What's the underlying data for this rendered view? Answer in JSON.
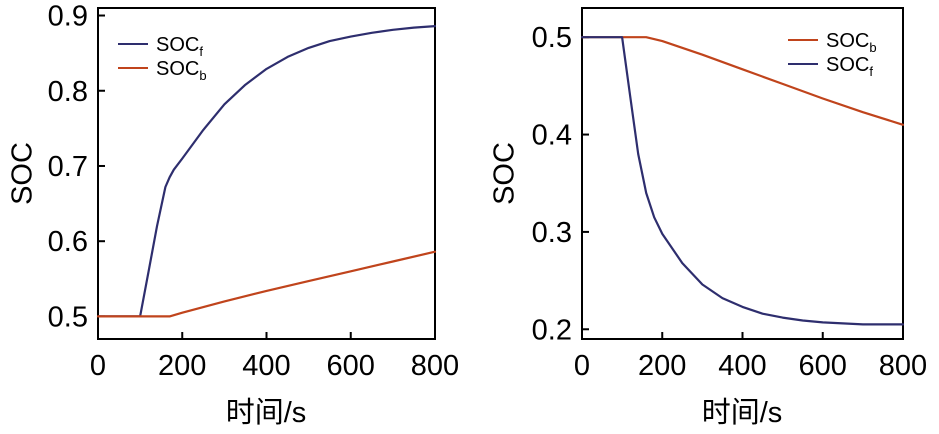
{
  "colors": {
    "SOC_f": "#2e2e6e",
    "SOC_b": "#c0441c",
    "axis": "#000000"
  },
  "chart_data": [
    {
      "type": "line",
      "xlabel": "时间/s",
      "ylabel": "SOC",
      "xlim": [
        0,
        800
      ],
      "ylim": [
        0.47,
        0.91
      ],
      "xticks": [
        0,
        200,
        400,
        600,
        800
      ],
      "xtick_labels": [
        "0",
        "200",
        "400",
        "600",
        "800"
      ],
      "yticks": [
        0.5,
        0.6,
        0.7,
        0.8,
        0.9
      ],
      "ytick_labels": [
        "0.5",
        "0.6",
        "0.7",
        "0.8",
        "0.9"
      ],
      "legend_position": "top-left",
      "legend": [
        {
          "base": "SOC",
          "sub": "f",
          "series": "SOC_f"
        },
        {
          "base": "SOC",
          "sub": "b",
          "series": "SOC_b"
        }
      ],
      "series": [
        {
          "name": "SOC_f",
          "color_key": "SOC_f",
          "x": [
            0,
            100,
            120,
            140,
            160,
            170,
            180,
            200,
            250,
            300,
            350,
            400,
            450,
            500,
            550,
            600,
            650,
            700,
            750,
            800
          ],
          "y": [
            0.5,
            0.5,
            0.56,
            0.62,
            0.672,
            0.685,
            0.695,
            0.71,
            0.748,
            0.782,
            0.808,
            0.829,
            0.845,
            0.857,
            0.866,
            0.872,
            0.877,
            0.881,
            0.884,
            0.886
          ]
        },
        {
          "name": "SOC_b",
          "color_key": "SOC_b",
          "x": [
            0,
            100,
            170,
            200,
            300,
            400,
            500,
            600,
            700,
            800
          ],
          "y": [
            0.5,
            0.5,
            0.5,
            0.505,
            0.52,
            0.534,
            0.547,
            0.56,
            0.573,
            0.586
          ]
        }
      ]
    },
    {
      "type": "line",
      "xlabel": "时间/s",
      "ylabel": "SOC",
      "xlim": [
        0,
        800
      ],
      "ylim": [
        0.19,
        0.53
      ],
      "xticks": [
        0,
        200,
        400,
        600,
        800
      ],
      "xtick_labels": [
        "0",
        "200",
        "400",
        "600",
        "800"
      ],
      "yticks": [
        0.2,
        0.3,
        0.4,
        0.5
      ],
      "ytick_labels": [
        "0.2",
        "0.3",
        "0.4",
        "0.5"
      ],
      "legend_position": "top-right",
      "legend": [
        {
          "base": "SOC",
          "sub": "b",
          "series": "SOC_b"
        },
        {
          "base": "SOC",
          "sub": "f",
          "series": "SOC_f"
        }
      ],
      "series": [
        {
          "name": "SOC_b",
          "color_key": "SOC_b",
          "x": [
            0,
            100,
            150,
            160,
            200,
            300,
            400,
            500,
            600,
            700,
            800
          ],
          "y": [
            0.5,
            0.5,
            0.5,
            0.5,
            0.496,
            0.482,
            0.467,
            0.452,
            0.437,
            0.423,
            0.41
          ]
        },
        {
          "name": "SOC_f",
          "color_key": "SOC_f",
          "x": [
            0,
            100,
            120,
            140,
            160,
            180,
            200,
            250,
            300,
            350,
            400,
            450,
            500,
            550,
            600,
            650,
            700,
            750,
            800
          ],
          "y": [
            0.5,
            0.5,
            0.44,
            0.38,
            0.34,
            0.315,
            0.298,
            0.268,
            0.246,
            0.232,
            0.223,
            0.216,
            0.212,
            0.209,
            0.207,
            0.206,
            0.205,
            0.205,
            0.205
          ]
        }
      ]
    }
  ]
}
